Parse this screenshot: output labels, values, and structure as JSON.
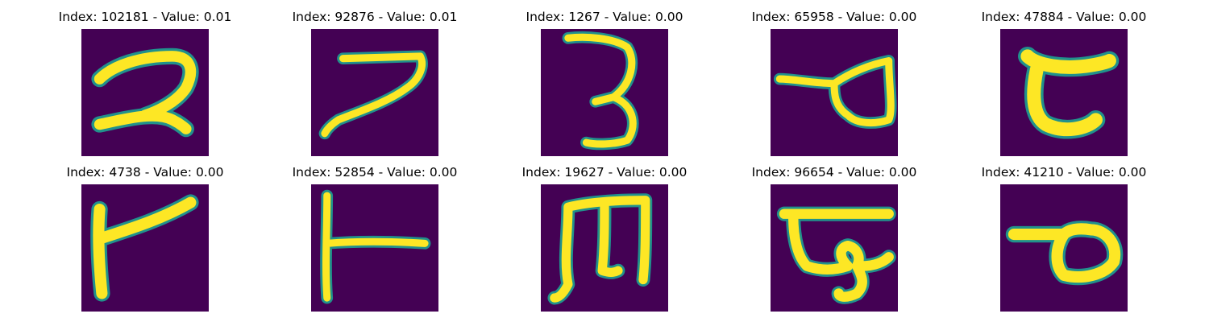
{
  "panels": [
    {
      "title": "Index: 102181 - Value: 0.01",
      "glyph": "2-like stroke",
      "colors": {
        "background": "#440154",
        "stroke": "#fde725",
        "edge": "#21918c"
      }
    },
    {
      "title": "Index: 92876 - Value: 0.01",
      "glyph": "7-like stroke",
      "colors": {
        "background": "#440154",
        "stroke": "#fde725",
        "edge": "#21918c"
      }
    },
    {
      "title": "Index: 1267 - Value: 0.00",
      "glyph": "3-like stroke",
      "colors": {
        "background": "#440154",
        "stroke": "#fde725",
        "edge": "#21918c"
      }
    },
    {
      "title": "Index: 65958 - Value: 0.00",
      "glyph": "loop with tail stroke",
      "colors": {
        "background": "#440154",
        "stroke": "#fde725",
        "edge": "#21918c"
      }
    },
    {
      "title": "Index: 47884 - Value: 0.00",
      "glyph": "curved hook stroke",
      "colors": {
        "background": "#440154",
        "stroke": "#fde725",
        "edge": "#21918c"
      }
    },
    {
      "title": "Index: 4738 - Value: 0.00",
      "glyph": "vertical with slanted bar stroke",
      "colors": {
        "background": "#440154",
        "stroke": "#fde725",
        "edge": "#21918c"
      }
    },
    {
      "title": "Index: 52854 - Value: 0.00",
      "glyph": "vertical with horizontal bar stroke",
      "colors": {
        "background": "#440154",
        "stroke": "#fde725",
        "edge": "#21918c"
      }
    },
    {
      "title": "Index: 19627 - Value: 0.00",
      "glyph": "m-like stroke",
      "colors": {
        "background": "#440154",
        "stroke": "#fde725",
        "edge": "#21918c"
      }
    },
    {
      "title": "Index: 96654 - Value: 0.00",
      "glyph": "flat top with loops stroke",
      "colors": {
        "background": "#440154",
        "stroke": "#fde725",
        "edge": "#21918c"
      }
    },
    {
      "title": "Index: 41210 - Value: 0.00",
      "glyph": "loop with bar stroke",
      "colors": {
        "background": "#440154",
        "stroke": "#fde725",
        "edge": "#21918c"
      }
    }
  ]
}
